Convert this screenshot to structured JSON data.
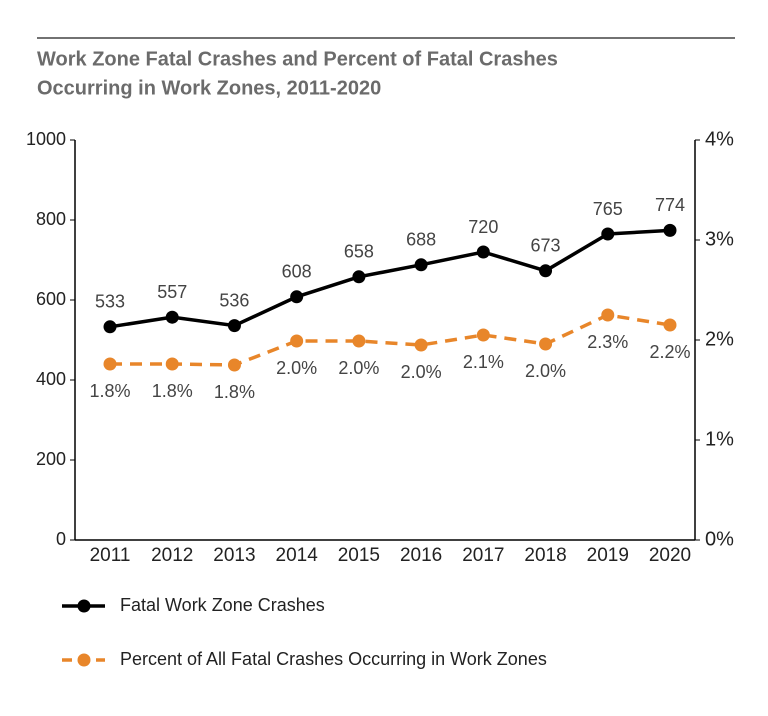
{
  "chart_data": {
    "type": "line",
    "title": [
      "Work Zone Fatal Crashes and Percent of Fatal Crashes",
      "Occurring in Work Zones, 2011-2020"
    ],
    "categories": [
      "2011",
      "2012",
      "2013",
      "2014",
      "2015",
      "2016",
      "2017",
      "2018",
      "2019",
      "2020"
    ],
    "series": [
      {
        "name": "Fatal Work Zone Crashes",
        "color": "#000000",
        "dashed": false,
        "values": [
          533,
          557,
          536,
          608,
          658,
          688,
          720,
          673,
          765,
          774
        ]
      },
      {
        "name": "Percent of All Fatal Crashes Occurring in Work Zones",
        "color": "#e8862a",
        "dashed": true,
        "axis": "y2",
        "values": [
          1.76,
          1.76,
          1.75,
          1.99,
          1.99,
          1.95,
          2.05,
          1.96,
          2.25,
          2.15
        ],
        "value_labels": [
          "1.8%",
          "1.8%",
          "1.8%",
          "2.0%",
          "2.0%",
          "2.0%",
          "2.1%",
          "2.0%",
          "2.3%",
          "2.2%"
        ]
      }
    ],
    "ylim": [
      0,
      1000
    ],
    "yticks": [
      0,
      200,
      400,
      600,
      800,
      1000
    ],
    "y2lim": [
      0,
      4
    ],
    "y2ticks": [
      {
        "value": 0,
        "label": "0%"
      },
      {
        "value": 1,
        "label": "1%"
      },
      {
        "value": 2,
        "label": "2%"
      },
      {
        "value": 3,
        "label": "3%"
      },
      {
        "value": 4,
        "label": "4%"
      }
    ]
  }
}
